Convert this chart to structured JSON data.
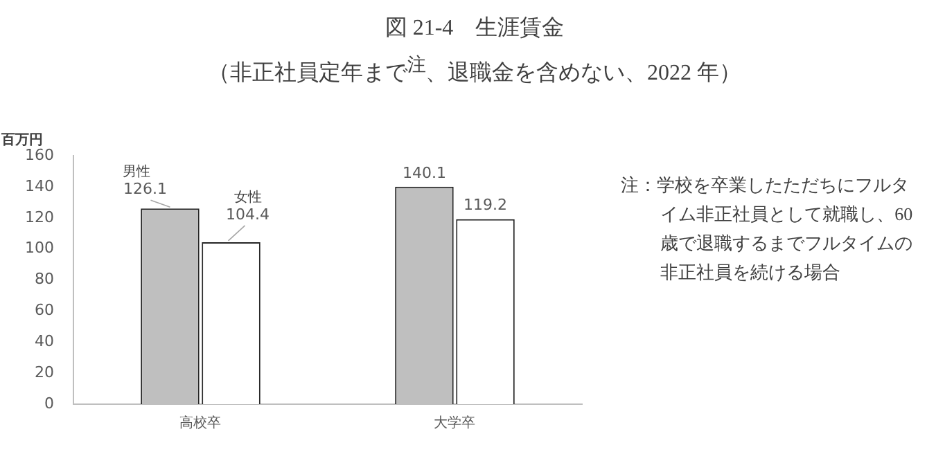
{
  "chart_data": {
    "type": "bar",
    "title": "図 21-4　生涯賃金",
    "subtitle": "（非正社員定年まで$^{注}$、退職金を含めない、2022 年）",
    "ylabel": "百万円",
    "categories": [
      "高校卒",
      "大学卒"
    ],
    "series": [
      {
        "name": "男性",
        "color": "#bfbfbf",
        "values": [
          126.1,
          140.1
        ]
      },
      {
        "name": "女性",
        "color": "#ffffff",
        "values": [
          104.4,
          119.2
        ]
      }
    ],
    "ylim": [
      0,
      160
    ],
    "yticks": [
      0,
      20,
      40,
      60,
      80,
      100,
      120,
      140,
      160
    ],
    "data_labels": true,
    "grid": false,
    "legend": false,
    "annotations": [
      "注：学校を卒業したただちにフルタイム非正社員として就職し、60 歳で退職するまでフルタイムの非正社員を続ける場合"
    ]
  }
}
